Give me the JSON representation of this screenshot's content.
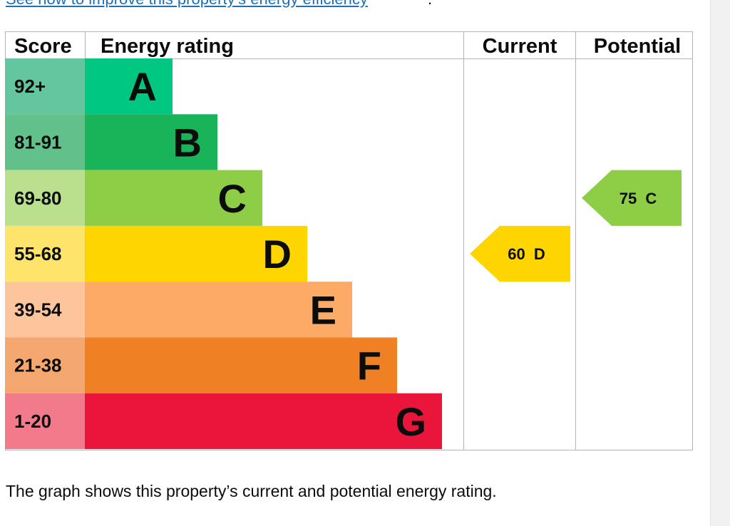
{
  "top_link": {
    "text": "See how to improve this property’s energy efficiency",
    "suffix": "."
  },
  "headers": {
    "score": "Score",
    "energy_rating": "Energy rating",
    "current": "Current",
    "potential": "Potential"
  },
  "caption": "The graph shows this property’s current and potential energy rating.",
  "chart_data": {
    "type": "table",
    "bands": [
      {
        "letter": "A",
        "range": "92+",
        "score_color": "#63c69f",
        "bar_color": "#00c781"
      },
      {
        "letter": "B",
        "range": "81-91",
        "score_color": "#62c08b",
        "bar_color": "#19b459"
      },
      {
        "letter": "C",
        "range": "69-80",
        "score_color": "#badf8d",
        "bar_color": "#8dce46"
      },
      {
        "letter": "D",
        "range": "55-68",
        "score_color": "#ffe46b",
        "bar_color": "#ffd500"
      },
      {
        "letter": "E",
        "range": "39-54",
        "score_color": "#fdc59c",
        "bar_color": "#fcaa65"
      },
      {
        "letter": "F",
        "range": "21-38",
        "score_color": "#f4a76e",
        "bar_color": "#ef8023"
      },
      {
        "letter": "G",
        "range": "1-20",
        "score_color": "#f37a8b",
        "bar_color": "#e9153b"
      }
    ],
    "current": {
      "score": 60,
      "letter": "D",
      "label": "60  D",
      "color": "#ffd500"
    },
    "potential": {
      "score": 75,
      "letter": "C",
      "label": "75  C",
      "color": "#8dce46"
    }
  }
}
